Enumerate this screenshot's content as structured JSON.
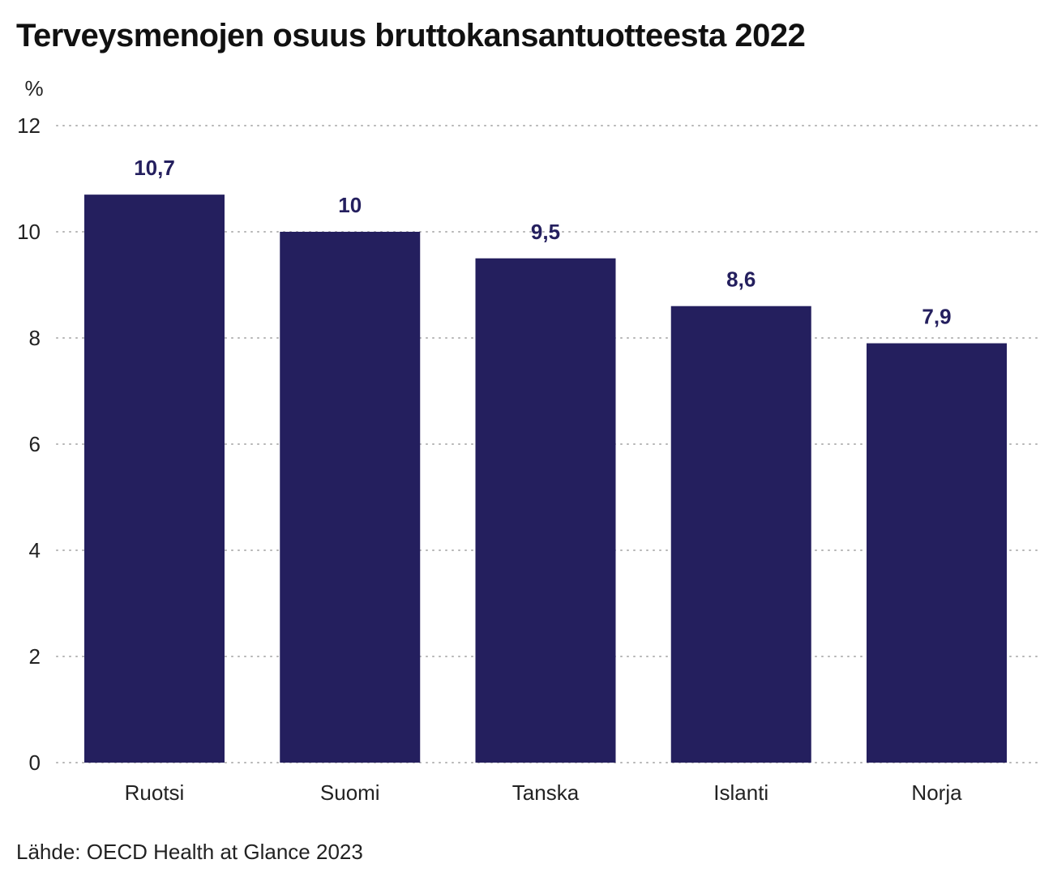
{
  "chart_data": {
    "type": "bar",
    "title": "Terveysmenojen osuus bruttokansantuotteesta 2022",
    "ylabel": "%",
    "categories": [
      "Ruotsi",
      "Suomi",
      "Tanska",
      "Islanti",
      "Norja"
    ],
    "values": [
      10.7,
      10,
      9.5,
      8.6,
      7.9
    ],
    "value_labels": [
      "10,7",
      "10",
      "9,5",
      "8,6",
      "7,9"
    ],
    "yticks": [
      0,
      2,
      4,
      6,
      8,
      10,
      12
    ],
    "ylim": [
      0,
      12
    ],
    "grid": true,
    "bar_color": "#241f5e",
    "label_color": "#241f5e"
  },
  "source": "Lähde: OECD Health at Glance 2023"
}
